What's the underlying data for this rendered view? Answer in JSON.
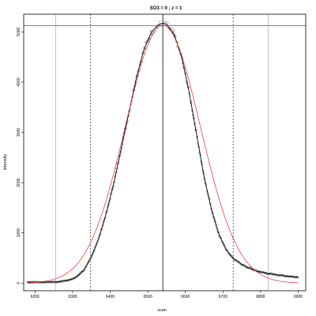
{
  "chart_data": {
    "type": "scatter",
    "title": "SO3 = 0 ; z = 1",
    "xlabel": "scan",
    "ylabel": "intensity",
    "xlim": [
      6170,
      6920
    ],
    "ylim": [
      -150,
      5350
    ],
    "x_ticks": [
      6200,
      6300,
      6400,
      6500,
      6600,
      6700,
      6800,
      6900
    ],
    "y_ticks": [
      0,
      1000,
      2000,
      3000,
      4000,
      5000
    ],
    "x_tick_labels": [
      "6200",
      "6300",
      "6400",
      "6500",
      "6600",
      "6700",
      "6800",
      "6900"
    ],
    "y_tick_labels": [
      "0",
      "1000",
      "2000",
      "3000",
      "4000",
      "5000"
    ],
    "grid": false,
    "reference_lines": {
      "horizontal_solid": 5120,
      "vertical_solid": [
        6255,
        6540,
        6820
      ],
      "vertical_dashed": [
        6348,
        6727
      ]
    },
    "peak": {
      "center": 6540,
      "height": 5130
    },
    "points": [
      [
        6180,
        20
      ],
      [
        6220,
        20
      ],
      [
        6260,
        25
      ],
      [
        6290,
        60
      ],
      [
        6310,
        120
      ],
      [
        6330,
        260
      ],
      [
        6350,
        520
      ],
      [
        6370,
        900
      ],
      [
        6390,
        1400
      ],
      [
        6410,
        2000
      ],
      [
        6430,
        2700
      ],
      [
        6450,
        3400
      ],
      [
        6470,
        4100
      ],
      [
        6490,
        4650
      ],
      [
        6510,
        5000
      ],
      [
        6530,
        5150
      ],
      [
        6540,
        5170
      ],
      [
        6550,
        5150
      ],
      [
        6570,
        4950
      ],
      [
        6590,
        4500
      ],
      [
        6610,
        3800
      ],
      [
        6630,
        2950
      ],
      [
        6650,
        2100
      ],
      [
        6670,
        1450
      ],
      [
        6690,
        950
      ],
      [
        6710,
        650
      ],
      [
        6730,
        470
      ],
      [
        6760,
        330
      ],
      [
        6790,
        240
      ],
      [
        6820,
        190
      ],
      [
        6850,
        160
      ],
      [
        6870,
        140
      ],
      [
        6900,
        120
      ]
    ],
    "series": [
      {
        "color": "#000000",
        "style": "smoothed-line"
      },
      {
        "color": "#e8262c",
        "style": "gaussian-fit",
        "fit_sigma": 100
      }
    ],
    "colors": {
      "points": "#8888aa",
      "fit": "#e8262c",
      "line": "#000000"
    }
  }
}
